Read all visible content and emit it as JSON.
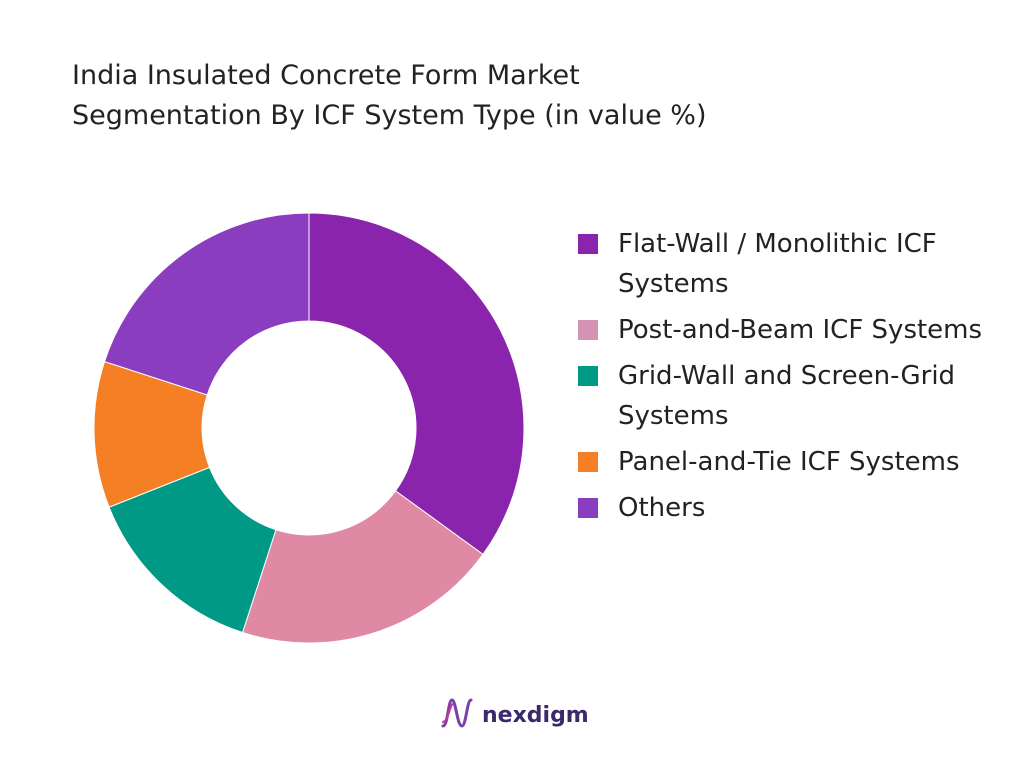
{
  "title": {
    "line1": "India Insulated Concrete Form Market",
    "line2": "Segmentation By ICF System Type (in value %)"
  },
  "chart_data": {
    "type": "pie",
    "variant": "donut",
    "legend_position": "right",
    "categories": [
      "Flat-Wall / Monolithic ICF Systems",
      "Post-and-Beam ICF Systems",
      "Grid-Wall and Screen-Grid Systems",
      "Panel-and-Tie ICF Systems",
      "Others"
    ],
    "values": [
      35,
      20,
      14,
      11,
      20
    ],
    "colors": [
      "#8a24ad",
      "#e089a5",
      "#009986",
      "#f47f24",
      "#8a3dbf"
    ],
    "legend_colors": [
      "#8a24ad",
      "#d493b4",
      "#009986",
      "#f47f24",
      "#8a3dbf"
    ]
  },
  "logo": {
    "text": "nexdigm",
    "icon": "nexdigm-logo-icon"
  }
}
